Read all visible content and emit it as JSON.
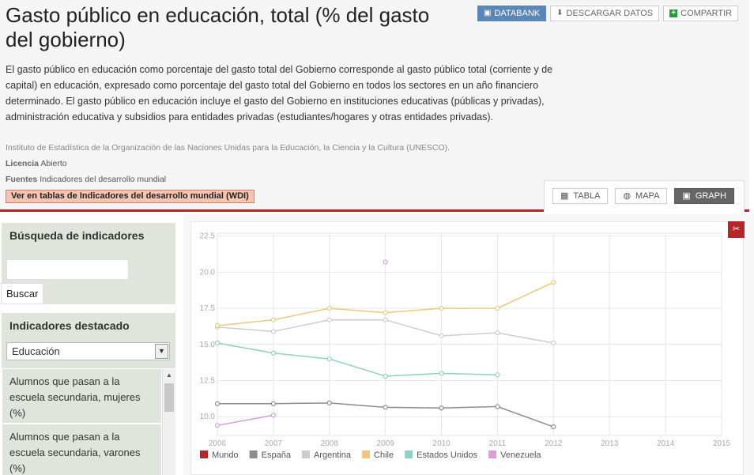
{
  "header": {
    "title": "Gasto público en educación, total (% del gasto del gobierno)",
    "buttons": [
      {
        "label": "DATABANK",
        "icon": "chart-icon"
      },
      {
        "label": "DESCARGAR DATOS",
        "icon": "download-icon"
      },
      {
        "label": "COMPARTIR",
        "icon": "plus-icon"
      }
    ],
    "description": "El gasto público en educación como porcentaje del gasto total del Gobierno corresponde al gasto público total (corriente y de capital) en educación, expresado como porcentaje del gasto total del Gobierno en todos los sectores en un año financiero determinado. El gasto público en educación incluye el gasto del Gobierno en instituciones educativas (públicas y privadas), administración educativa y subsidios para entidades privadas (estudiantes/hogares y otras entidades privadas).",
    "source": "Instituto de Estadística de la Organización de las Naciones Unidas para la Educación, la Ciencia y la Cultura (UNESCO).",
    "license_label": "Licencia",
    "license_value": "Abierto",
    "sources_label": "Fuentes",
    "sources_value": "Indicadores del desarrollo mundial",
    "wdi_link": "Ver en tablas de Indicadores del desarrollo mundial (WDI)"
  },
  "view_tabs": [
    {
      "label": "TABLA",
      "icon": "table-icon"
    },
    {
      "label": "MAPA",
      "icon": "globe-icon"
    },
    {
      "label": "GRAPH",
      "icon": "chart-icon",
      "active": true
    }
  ],
  "sidebar": {
    "search_title": "Búsqueda de indicadores",
    "search_value": "",
    "search_button": "Buscar",
    "featured_title": "Indicadores destacado",
    "featured_select": "Educación",
    "items": [
      "Alumnos que pasan a la escuela secundaria, mujeres (%)",
      "Alumnos que pasan a la escuela secundaria, varones (%)"
    ]
  },
  "chart_data": {
    "type": "line",
    "x": [
      2006,
      2007,
      2008,
      2009,
      2010,
      2011,
      2012
    ],
    "x_ticks": [
      "2006",
      "2007",
      "2008",
      "2009",
      "2010",
      "2011",
      "2012",
      "2013",
      "2014",
      "2015"
    ],
    "y_ticks": [
      "10.0",
      "12.5",
      "15.0",
      "17.5",
      "20.0",
      "22.5"
    ],
    "xlim": [
      2006,
      2015
    ],
    "ylim": [
      8.7,
      22.7
    ],
    "grid": true,
    "legend_position": "bottom-left",
    "series": [
      {
        "name": "Mundo",
        "color": "#b5262a",
        "values": [
          null,
          null,
          null,
          null,
          null,
          null,
          null
        ]
      },
      {
        "name": "España",
        "color": "#8c8c8c",
        "values": [
          10.9,
          10.9,
          10.95,
          10.65,
          10.6,
          10.7,
          9.3
        ]
      },
      {
        "name": "Argentina",
        "color": "#cccccc",
        "values": [
          16.2,
          15.9,
          16.7,
          16.7,
          15.6,
          15.8,
          15.1
        ]
      },
      {
        "name": "Chile",
        "color": "#eec77e",
        "values": [
          16.3,
          16.7,
          17.5,
          17.2,
          17.5,
          17.5,
          19.3
        ]
      },
      {
        "name": "Estados Unidos",
        "color": "#90cfc6",
        "values": [
          15.1,
          14.4,
          14.0,
          12.8,
          13.0,
          12.9,
          null
        ]
      },
      {
        "name": "Venezuela",
        "color": "#d89ed8",
        "values": [
          9.4,
          10.1,
          null,
          20.7,
          null,
          null,
          null
        ]
      }
    ]
  }
}
